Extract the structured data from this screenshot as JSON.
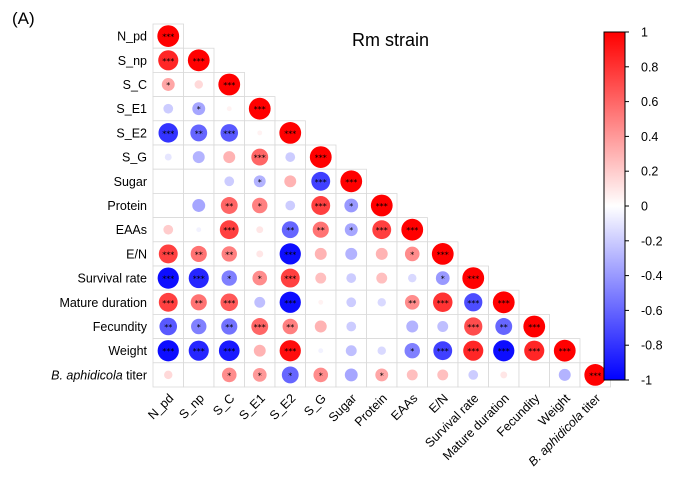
{
  "panel_label": "(A)",
  "chart_data": {
    "type": "heatmap",
    "subtype": "correlation-circles-lower-triangle",
    "title": "Rm strain",
    "variables": [
      "N_pd",
      "S_np",
      "S_C",
      "S_E1",
      "S_E2",
      "S_G",
      "Sugar",
      "Protein",
      "EAAs",
      "E/N",
      "Survival rate",
      "Mature duration",
      "Fecundity",
      "Weight",
      "B. aphidicola titer"
    ],
    "italic_labels": [
      "B. aphidicola"
    ],
    "colorbar": {
      "range": [
        -1,
        1
      ],
      "ticks": [
        "1",
        "0.8",
        "0.6",
        "0.4",
        "0.2",
        "0",
        "-0.2",
        "-0.4",
        "-0.6",
        "-0.8",
        "-1"
      ],
      "colors": {
        "negative": "#0000ff",
        "zero": "#ffffff",
        "positive": "#ff0000"
      }
    },
    "matrix": [
      [
        1
      ],
      [
        0.85,
        1
      ],
      [
        0.35,
        0.15,
        1
      ],
      [
        -0.2,
        -0.35,
        0.05,
        1
      ],
      [
        -0.8,
        -0.6,
        -0.65,
        0.05,
        1
      ],
      [
        -0.1,
        -0.3,
        0.3,
        0.6,
        -0.2,
        1
      ],
      [
        0,
        0,
        -0.2,
        -0.3,
        0.3,
        -0.75,
        1
      ],
      [
        0,
        -0.35,
        0.6,
        0.5,
        -0.2,
        0.75,
        -0.4,
        1
      ],
      [
        0.2,
        -0.05,
        0.75,
        0.1,
        -0.6,
        0.55,
        -0.35,
        0.75,
        1
      ],
      [
        0.75,
        0.55,
        0.5,
        0.1,
        -0.95,
        0.3,
        -0.3,
        0.3,
        0.45,
        1
      ],
      [
        -0.95,
        -0.85,
        -0.5,
        0.45,
        0.75,
        0.25,
        -0.2,
        0.25,
        -0.15,
        -0.4,
        1
      ],
      [
        0.75,
        0.55,
        0.65,
        -0.25,
        -0.95,
        0.05,
        -0.2,
        -0.15,
        0.45,
        0.8,
        -0.7,
        1
      ],
      [
        -0.65,
        -0.5,
        -0.55,
        0.6,
        0.5,
        0.3,
        -0.2,
        0,
        -0.3,
        -0.25,
        0.7,
        -0.6,
        1
      ],
      [
        -0.95,
        -0.85,
        -0.9,
        0.3,
        0.95,
        -0.05,
        -0.25,
        -0.15,
        -0.5,
        -0.75,
        0.85,
        -0.95,
        0.85,
        1
      ],
      [
        0.15,
        0,
        0.45,
        0.4,
        -0.6,
        0.45,
        -0.35,
        0.35,
        0.25,
        0.25,
        -0.2,
        0.1,
        0,
        -0.3,
        1
      ]
    ],
    "significance": [
      [
        "***"
      ],
      [
        "***",
        "***"
      ],
      [
        "*",
        "",
        "***"
      ],
      [
        "",
        "*",
        "",
        "***"
      ],
      [
        "***",
        "**",
        "***",
        "",
        "***"
      ],
      [
        "",
        "",
        "",
        "***",
        "",
        "***"
      ],
      [
        "",
        "",
        "",
        "*",
        "",
        "***",
        "***"
      ],
      [
        "",
        "",
        "**",
        "*",
        "",
        "***",
        "*",
        "***"
      ],
      [
        "",
        "",
        "***",
        "",
        "**",
        "**",
        "*",
        "***",
        "***"
      ],
      [
        "***",
        "**",
        "**",
        "",
        "***",
        "",
        "",
        "",
        "*",
        "***"
      ],
      [
        "***",
        "***",
        "*",
        "*",
        "***",
        "",
        "",
        "",
        "",
        "*",
        "***"
      ],
      [
        "***",
        "**",
        "***",
        "",
        "***",
        "",
        "",
        "",
        "**",
        "***",
        "***",
        "***"
      ],
      [
        "**",
        "*",
        "**",
        "***",
        "**",
        "",
        "",
        "",
        "",
        "",
        "***",
        "**",
        "***"
      ],
      [
        "***",
        "***",
        "***",
        "",
        "***",
        "",
        "",
        "",
        "*",
        "***",
        "***",
        "***",
        "***",
        "***"
      ],
      [
        "",
        "",
        "*",
        "*",
        "*",
        "*",
        "",
        "*",
        "",
        "",
        "",
        "",
        "",
        "",
        "***"
      ]
    ]
  }
}
